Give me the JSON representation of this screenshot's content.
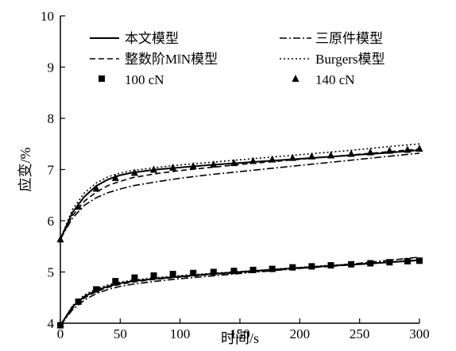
{
  "chart_data": {
    "type": "line",
    "xlabel": "时间/s",
    "ylabel": "应变/%",
    "xlim": [
      0,
      300
    ],
    "ylim": [
      4,
      10
    ],
    "xticks": [
      0,
      50,
      100,
      150,
      200,
      250,
      300
    ],
    "yticks": [
      4,
      5,
      6,
      7,
      8,
      9,
      10
    ],
    "grid": false,
    "legend_position": "top",
    "legend": {
      "model_this": "本文模型",
      "model_three": "三原件模型",
      "model_fractional": "整数阶M‖N模型",
      "model_burgers": "Burgers模型",
      "data_100": "100 cN",
      "data_140": "140 cN"
    },
    "series": [
      {
        "name": "100 cN",
        "kind": "data",
        "marker": "square",
        "x": [
          0,
          15,
          30,
          46,
          62,
          78,
          94,
          111,
          128,
          145,
          161,
          177,
          194,
          210,
          226,
          243,
          259,
          275,
          290,
          300
        ],
        "y": [
          3.96,
          4.42,
          4.66,
          4.82,
          4.89,
          4.93,
          4.96,
          4.98,
          5.0,
          5.02,
          5.04,
          5.06,
          5.09,
          5.11,
          5.13,
          5.15,
          5.17,
          5.19,
          5.21,
          5.22
        ]
      },
      {
        "name": "140 cN",
        "kind": "data",
        "marker": "triangle",
        "x": [
          0,
          15,
          30,
          46,
          62,
          78,
          94,
          111,
          128,
          145,
          161,
          177,
          194,
          210,
          226,
          243,
          259,
          275,
          290,
          300
        ],
        "y": [
          5.64,
          6.28,
          6.63,
          6.84,
          6.94,
          7.0,
          7.04,
          7.07,
          7.1,
          7.13,
          7.17,
          7.2,
          7.23,
          7.26,
          7.28,
          7.31,
          7.34,
          7.37,
          7.39,
          7.41
        ]
      },
      {
        "name": "本文模型",
        "kind": "fit",
        "dash": "solid",
        "x": [
          0,
          10,
          20,
          30,
          40,
          50,
          60,
          80,
          100,
          125,
          150,
          175,
          200,
          225,
          250,
          275,
          300
        ],
        "y_100": [
          3.96,
          4.32,
          4.52,
          4.64,
          4.72,
          4.78,
          4.82,
          4.87,
          4.91,
          4.96,
          5.0,
          5.04,
          5.08,
          5.12,
          5.15,
          5.19,
          5.23
        ],
        "y_140": [
          5.64,
          6.16,
          6.47,
          6.68,
          6.81,
          6.89,
          6.94,
          7.0,
          7.04,
          7.09,
          7.13,
          7.17,
          7.21,
          7.25,
          7.29,
          7.33,
          7.38
        ]
      },
      {
        "name": "三原件模型",
        "kind": "fit",
        "dash": "dashdot",
        "x": [
          0,
          10,
          20,
          30,
          40,
          50,
          60,
          80,
          100,
          125,
          150,
          175,
          200,
          225,
          250,
          275,
          300
        ],
        "y_100": [
          3.96,
          4.26,
          4.45,
          4.58,
          4.66,
          4.72,
          4.76,
          4.82,
          4.87,
          4.92,
          4.97,
          5.02,
          5.07,
          5.12,
          5.17,
          5.23,
          5.29
        ],
        "y_140": [
          5.64,
          6.05,
          6.3,
          6.45,
          6.55,
          6.62,
          6.68,
          6.76,
          6.83,
          6.9,
          6.96,
          7.02,
          7.08,
          7.14,
          7.2,
          7.26,
          7.32
        ]
      },
      {
        "name": "整数阶M‖N模型",
        "kind": "fit",
        "dash": "dashed",
        "x": [
          0,
          10,
          20,
          30,
          40,
          50,
          60,
          80,
          100,
          125,
          150,
          175,
          200,
          225,
          250,
          275,
          300
        ],
        "y_100": [
          3.96,
          4.29,
          4.49,
          4.62,
          4.7,
          4.76,
          4.8,
          4.86,
          4.9,
          4.95,
          4.99,
          5.03,
          5.07,
          5.11,
          5.15,
          5.19,
          5.23
        ],
        "y_140": [
          5.64,
          6.1,
          6.38,
          6.56,
          6.69,
          6.77,
          6.84,
          6.92,
          6.98,
          7.04,
          7.1,
          7.15,
          7.2,
          7.25,
          7.3,
          7.35,
          7.4
        ]
      },
      {
        "name": "Burgers模型",
        "kind": "fit",
        "dash": "dotted",
        "x": [
          0,
          10,
          20,
          30,
          40,
          50,
          60,
          80,
          100,
          125,
          150,
          175,
          200,
          225,
          250,
          275,
          300
        ],
        "y_100": [
          3.96,
          4.34,
          4.55,
          4.67,
          4.75,
          4.8,
          4.84,
          4.89,
          4.93,
          4.97,
          5.01,
          5.05,
          5.09,
          5.13,
          5.16,
          5.2,
          5.24
        ],
        "y_140": [
          5.64,
          6.22,
          6.54,
          6.74,
          6.86,
          6.93,
          6.98,
          7.04,
          7.09,
          7.14,
          7.19,
          7.24,
          7.29,
          7.34,
          7.39,
          7.45,
          7.5
        ]
      }
    ]
  }
}
